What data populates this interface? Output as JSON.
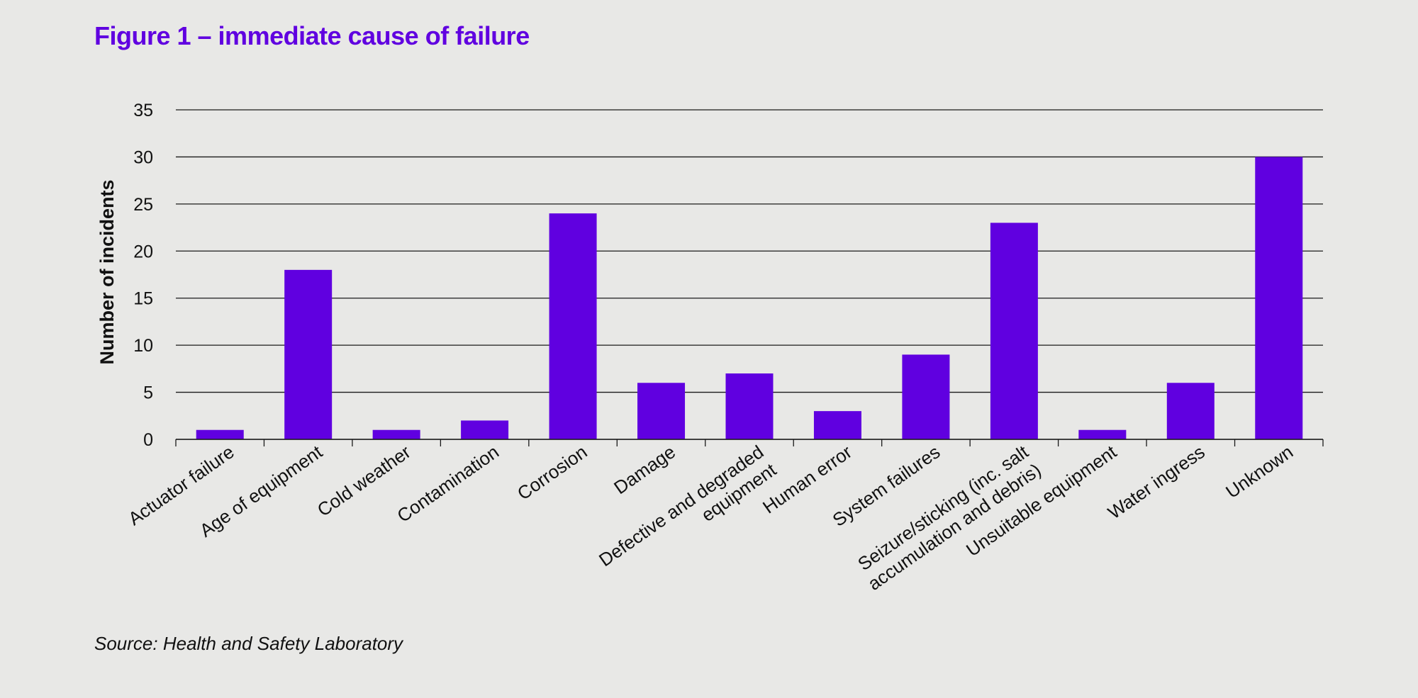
{
  "title": "Figure 1 – immediate cause of failure",
  "source": "Source: Health and Safety Laboratory",
  "colors": {
    "bar": "#6000e0",
    "title": "#6000e0",
    "background": "#e8e8e6",
    "grid": "#1a1a1a"
  },
  "chart_data": {
    "type": "bar",
    "ylabel": "Number of incidents",
    "xlabel": "",
    "ylim": [
      0,
      35
    ],
    "yticks": [
      0,
      5,
      10,
      15,
      20,
      25,
      30,
      35
    ],
    "grid": true,
    "categories": [
      [
        "Actuator failure"
      ],
      [
        "Age of equipment"
      ],
      [
        "Cold weather"
      ],
      [
        "Contamination"
      ],
      [
        "Corrosion"
      ],
      [
        "Damage"
      ],
      [
        "Defective and degraded",
        "equipment"
      ],
      [
        "Human error"
      ],
      [
        "System failures"
      ],
      [
        "Seizure/sticking (inc. salt",
        "accumulation and debris)"
      ],
      [
        "Unsuitable equipment"
      ],
      [
        "Water ingress"
      ],
      [
        "Unknown"
      ]
    ],
    "values": [
      1,
      18,
      1,
      2,
      24,
      6,
      7,
      3,
      9,
      23,
      1,
      6,
      30
    ]
  }
}
